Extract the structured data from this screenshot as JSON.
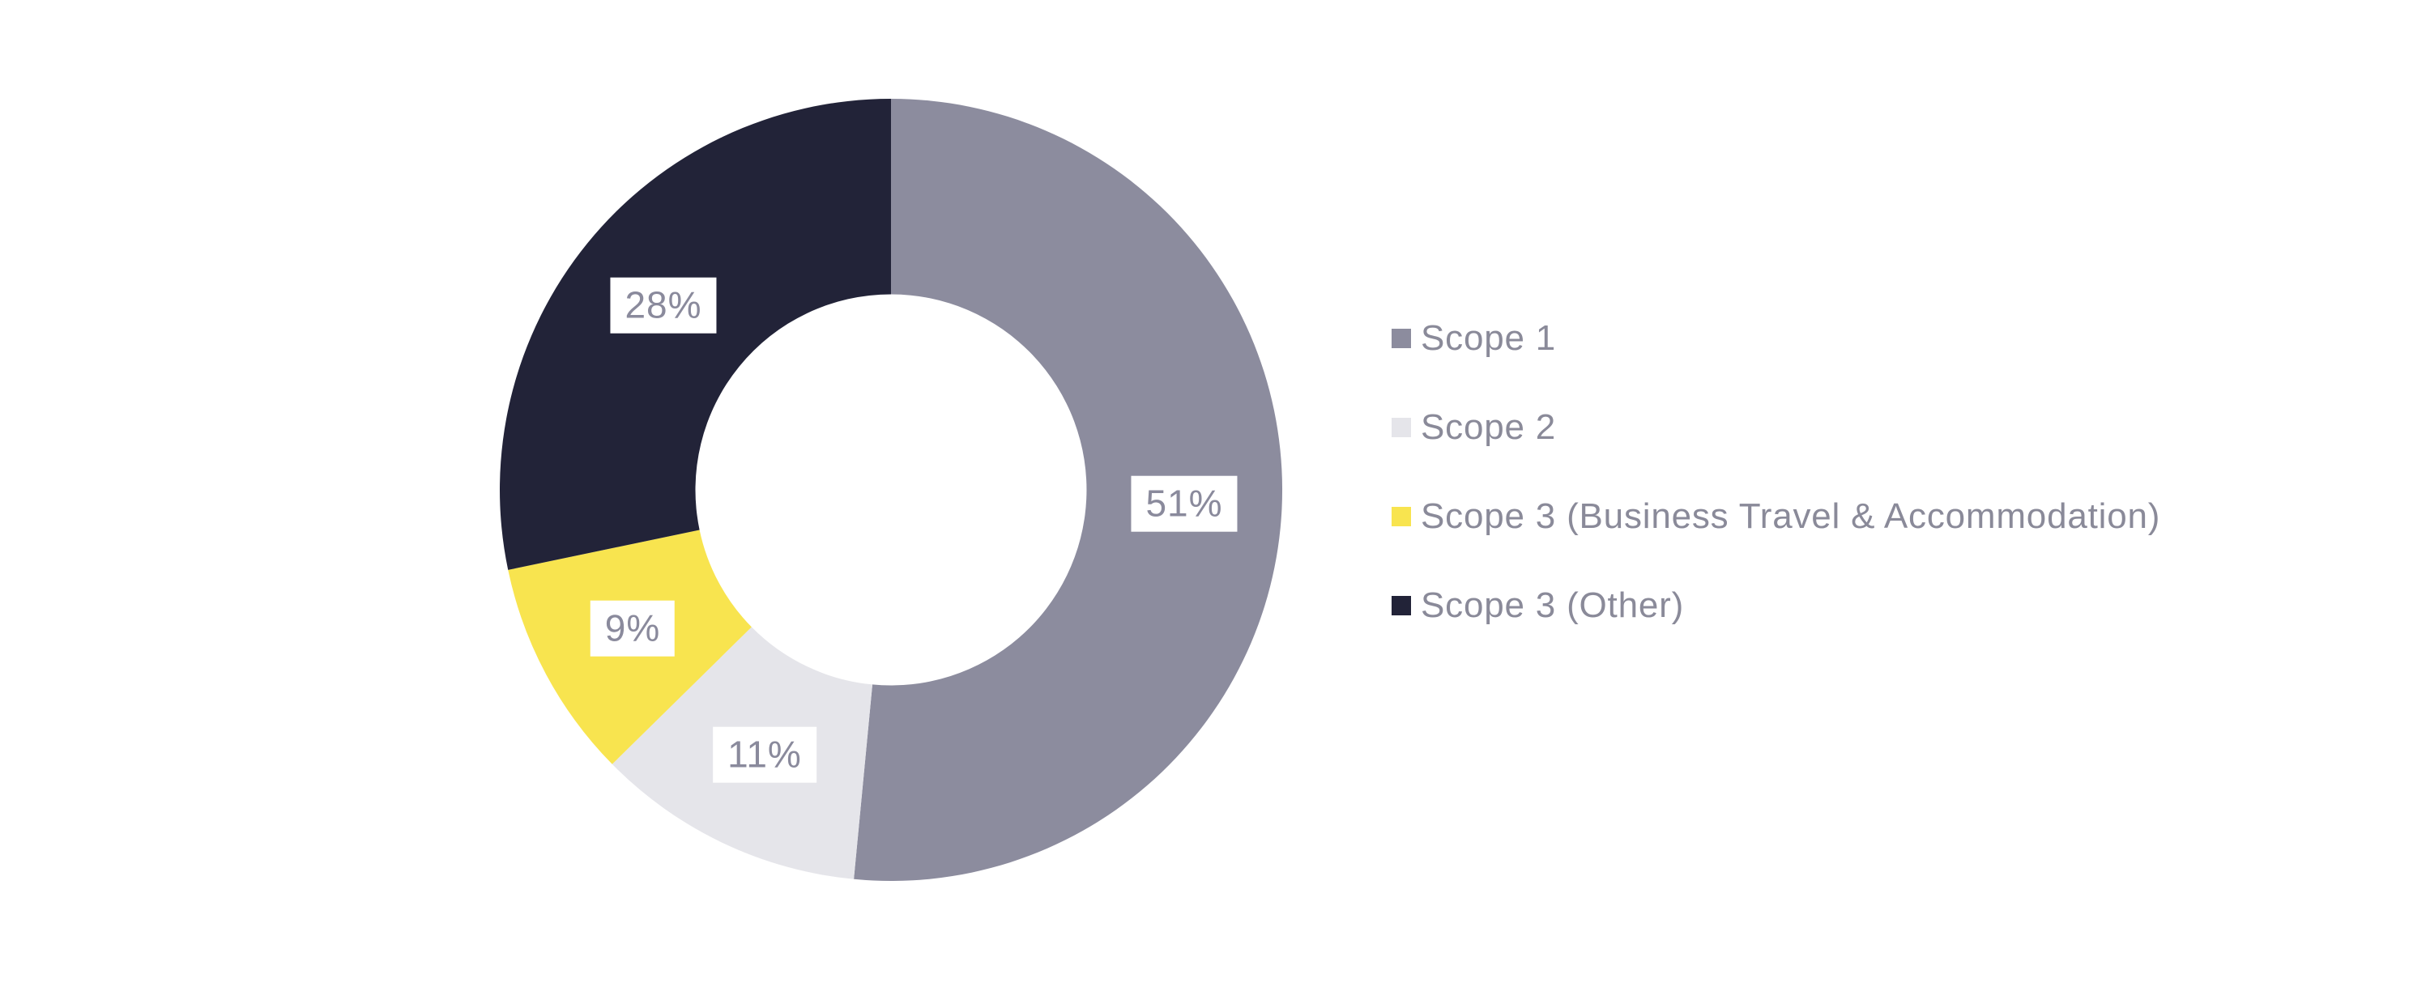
{
  "chart_data": {
    "type": "pie",
    "subtype": "donut",
    "title": "",
    "categories": [
      "Scope 1",
      "Scope 2",
      "Scope 3 (Business Travel & Accommodation)",
      "Scope 3 (Other)"
    ],
    "values": [
      51,
      11,
      9,
      28
    ],
    "slices": [
      {
        "label": "Scope 1",
        "value": 51,
        "pct_label": "51%",
        "color": "#8c8c9e"
      },
      {
        "label": "Scope 2",
        "value": 11,
        "pct_label": "11%",
        "color": "#e5e5ea"
      },
      {
        "label": "Scope 3 (Business Travel & Accommodation)",
        "value": 9,
        "pct_label": "9%",
        "color": "#f8e44f"
      },
      {
        "label": "Scope 3 (Other)",
        "value": 28,
        "pct_label": "28%",
        "color": "#222338"
      }
    ],
    "start_position": "top",
    "direction": "clockwise",
    "donut_hole_ratio": 0.5,
    "legend_position": "right",
    "label_style": {
      "text_color": "#8a8a9c",
      "background_color": "#ffffff"
    },
    "legend_text_color": "#8a8a99",
    "background_color": "#ffffff"
  }
}
